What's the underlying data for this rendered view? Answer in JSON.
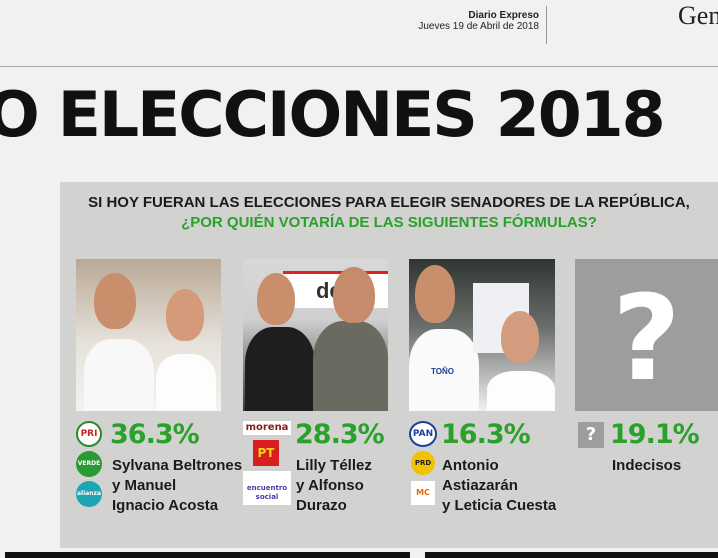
{
  "header": {
    "publication": "Diario Expreso",
    "date": "Jueves 19 de Abril de 2018",
    "section_fragment": "Gen"
  },
  "headline": "O ELECCIONES 2018",
  "poll": {
    "question_line1": "SI HOY FUERAN LAS ELECCIONES PARA ELEGIR SENADORES DE LA REPÚBLICA,",
    "question_line2": "¿POR QUIÉN VOTARÍA DE LAS SIGUIENTES FÓRMULAS?",
    "accent_color": "#2aa12a",
    "candidates": [
      {
        "percent": "36.3%",
        "names": [
          "Sylvana Beltrones",
          "y Manuel",
          "Ignacio Acosta"
        ],
        "logos": [
          "PRI",
          "VERDE",
          "alianza"
        ]
      },
      {
        "percent": "28.3%",
        "names": [
          "Lilly Téllez",
          "y Alfonso",
          "Durazo"
        ],
        "logos": [
          "morena",
          "PT",
          "encuentro social"
        ]
      },
      {
        "percent": "16.3%",
        "names": [
          "Antonio",
          "Astiazarán",
          "y Leticia Cuesta"
        ],
        "logos": [
          "PAN",
          "PRD",
          "MC"
        ]
      },
      {
        "percent": "19.1%",
        "names": [
          "Indecisos"
        ],
        "logos": [
          "?"
        ]
      }
    ],
    "photo_text": {
      "banner": "de e",
      "shirt": "TOÑO"
    },
    "placeholder_mark": "?"
  }
}
